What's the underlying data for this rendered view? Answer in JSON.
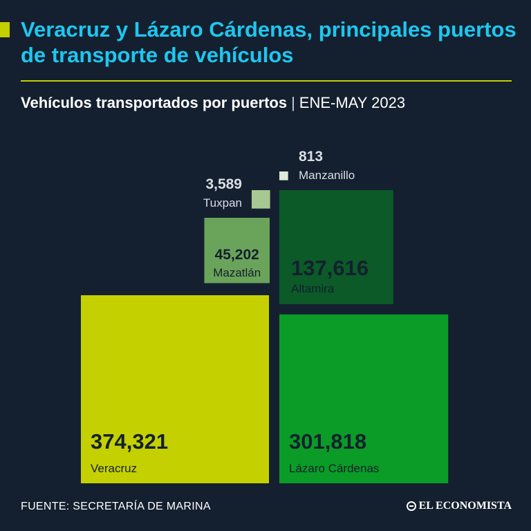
{
  "header": {
    "title": "Veracruz y Lázaro Cárdenas, principales puertos de transporte de vehículos",
    "subtitle": "Vehículos transportados por puertos",
    "separator": "|",
    "period": "ENE-MAY 2023"
  },
  "footer": {
    "source": "FUENTE: SECRETARÍA DE MARINA",
    "brand": "EL ECONOMISTA"
  },
  "colors": {
    "background": "#14202f",
    "title": "#1ec7f0",
    "accent": "#c5d000"
  },
  "chart_data": {
    "type": "treemap",
    "title": "Vehículos transportados por puertos",
    "unit": "vehículos",
    "period": "ENE-MAY 2023",
    "series": [
      {
        "name": "Veracruz",
        "value": 374321,
        "label": "374,321",
        "color": "#c5d000"
      },
      {
        "name": "Lázaro Cárdenas",
        "value": 301818,
        "label": "301,818",
        "color": "#0a9c26"
      },
      {
        "name": "Altamira",
        "value": 137616,
        "label": "137,616",
        "color": "#0b5a28"
      },
      {
        "name": "Mazatlán",
        "value": 45202,
        "label": "45,202",
        "color": "#6aa35a"
      },
      {
        "name": "Tuxpan",
        "value": 3589,
        "label": "3,589",
        "color": "#a7c893"
      },
      {
        "name": "Manzanillo",
        "value": 813,
        "label": "813",
        "color": "#dfe9dc"
      }
    ]
  }
}
